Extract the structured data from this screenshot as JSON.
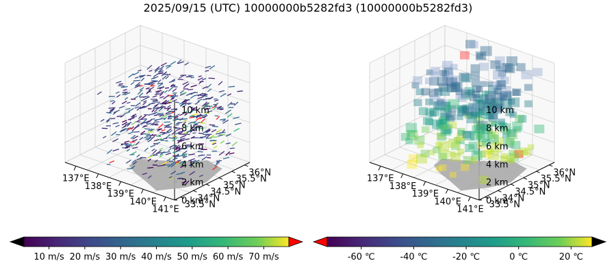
{
  "title": "2025/09/15 (UTC) 10000000b5282fd3 (10000000b5282fd3)",
  "chart_data": [
    {
      "type": "3d-quiver",
      "lon_ticks": [
        "137°E",
        "138°E",
        "139°E",
        "140°E",
        "141°E"
      ],
      "lat_ticks": [
        "33.5°N",
        "34°N",
        "34.5°N",
        "35°N",
        "35.5°N",
        "36°N"
      ],
      "alt_ticks": [
        "0 km",
        "2 km",
        "4 km",
        "6 km",
        "8 km",
        "10 km"
      ],
      "lon_range": [
        136.5,
        141.2
      ],
      "lat_range": [
        33.5,
        36.3
      ],
      "alt_range": [
        0,
        11
      ],
      "colorbar": {
        "colormap": "viridis",
        "ticks": [
          "10 m/s",
          "20 m/s",
          "30 m/s",
          "40 m/s",
          "50 m/s",
          "60 m/s",
          "70 m/s"
        ],
        "range": [
          3,
          77
        ],
        "extend_low_color": "#000000",
        "extend_high_color": "#ff0000"
      },
      "land_color": "#aaaaaa"
    },
    {
      "type": "3d-voxel",
      "lon_ticks": [
        "137°E",
        "138°E",
        "139°E",
        "140°E",
        "141°E"
      ],
      "lat_ticks": [
        "33.5°N",
        "34°N",
        "34.5°N",
        "35°N",
        "35.5°N",
        "36°N"
      ],
      "alt_ticks": [
        "0 km",
        "2 km",
        "4 km",
        "6 km",
        "8 km",
        "10 km"
      ],
      "lon_range": [
        136.5,
        141.2
      ],
      "lat_range": [
        33.5,
        36.3
      ],
      "alt_range": [
        0,
        11
      ],
      "colorbar": {
        "colormap": "viridis",
        "ticks": [
          "-60 ℃",
          "-40 ℃",
          "-20 ℃",
          "0 ℃",
          "20 ℃"
        ],
        "range": [
          -73,
          28
        ],
        "extend_low_color": "#ff0000",
        "extend_high_color": "#000000"
      },
      "land_color": "#aaaaaa"
    }
  ]
}
